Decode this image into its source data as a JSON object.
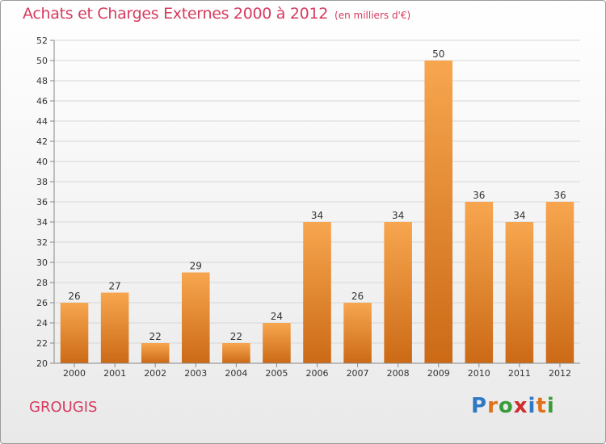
{
  "colors": {
    "title": "#d63b5e",
    "bar_light": "#f7a64f",
    "bar_dark": "#cc6a16",
    "grid": "#d6d6d6",
    "axis_text": "#333333",
    "logo_letters": [
      "#2f78c4",
      "#e0711b",
      "#3a9b3a",
      "#d12b2b",
      "#2f78c4",
      "#e0711b",
      "#3a9b3a"
    ]
  },
  "header": {
    "title": "Achats et Charges Externes 2000 à 2012",
    "unit": "(en milliers d'€)"
  },
  "footer": {
    "commune": "GROUGIS",
    "logo": "Proxiti"
  },
  "chart_data": {
    "type": "bar",
    "title": "Achats et Charges Externes 2000 à 2012",
    "subtitle": "(en milliers d'€)",
    "xlabel": "",
    "ylabel": "",
    "categories": [
      "2000",
      "2001",
      "2002",
      "2003",
      "2004",
      "2005",
      "2006",
      "2007",
      "2008",
      "2009",
      "2010",
      "2011",
      "2012"
    ],
    "values": [
      26,
      27,
      22,
      29,
      22,
      24,
      34,
      26,
      34,
      50,
      36,
      34,
      36
    ],
    "ylim": [
      20,
      52
    ],
    "yticks": [
      20,
      22,
      24,
      26,
      28,
      30,
      32,
      34,
      36,
      38,
      40,
      42,
      44,
      46,
      48,
      50,
      52
    ],
    "grid": true,
    "legend": "none",
    "data_labels": true
  }
}
